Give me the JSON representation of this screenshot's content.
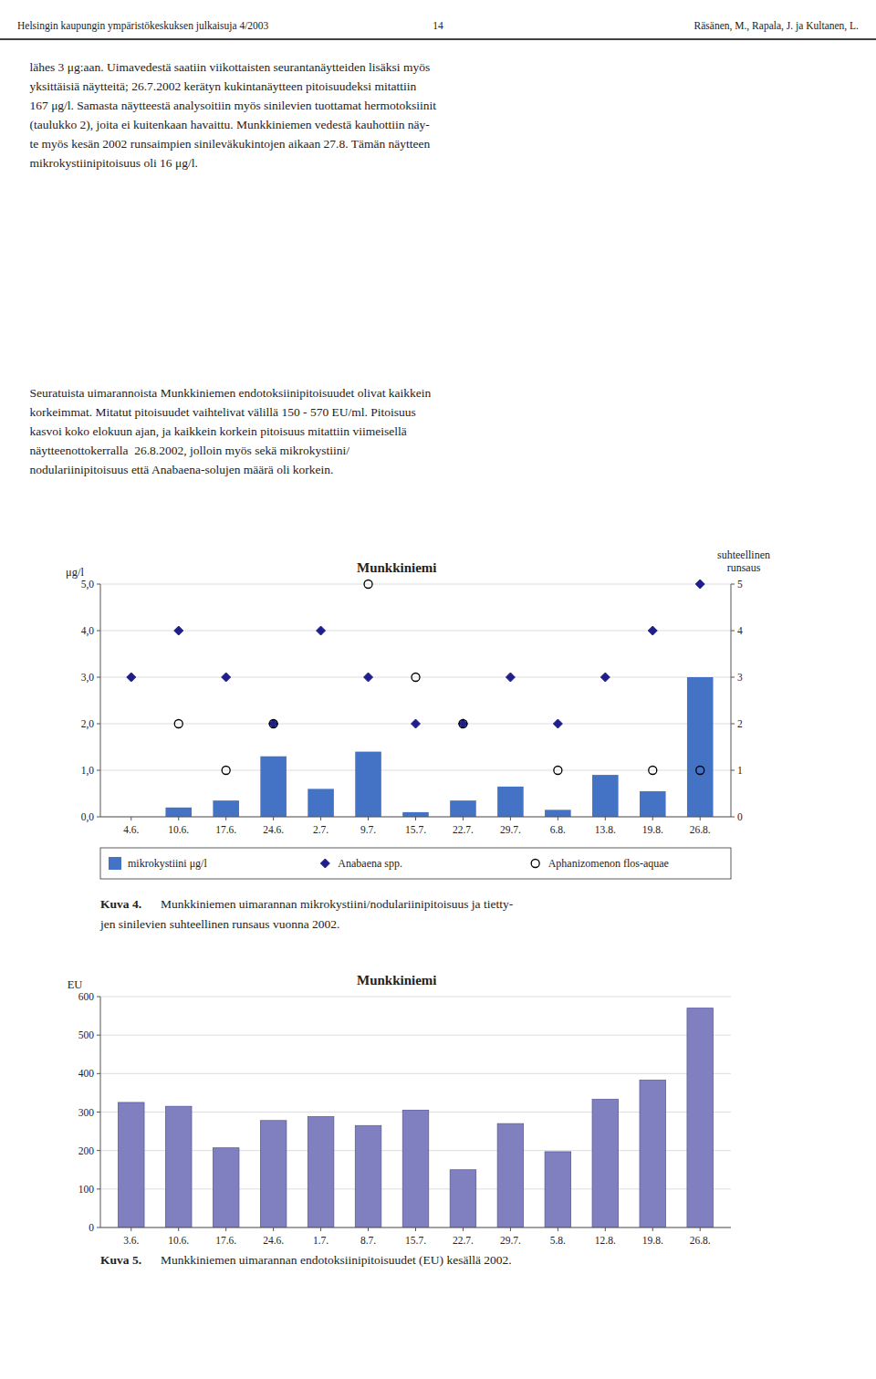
{
  "header": [
    "Helsingin kaupungin ympäristökeskuksen julkaisuja 4/2003",
    "14",
    "Räsänen, M., Rapala, J. ja Kultanen, L."
  ],
  "body_text": [
    "    lähes 3 μg:aan. Uimavedestä saatiin viikottaisten seurantanäytteiden lisäksi myös",
    "    yksittäisiä näytteitä; 26.7.2002 kerätyn kukintanäytteen pitoisuudeksi mitattiin",
    "    167 μg/l. Samasta näytteestä analysoitiin myös sinilevien tuottamat hermotoksiinit",
    "    (taulukko 2), joita ei kuitenkaan havaittu. Munkkiniemen vedestä kauhottiin näy-",
    "    te myös kesän 2002 runsaimpien sinileväkukintojen aikaan 27.8. Tämän näytteen",
    "    mikrokystiinipitoisuus oli 16 μg/l."
  ],
  "body_text2": [
    "    Seuratuista uimarannoista Munkkiniemen endotoksiinipitoisuudet olivat kaikkein",
    "    korkeimmat. Mitatut pitoisuudet vaihtelivat välillä 150 - 570 EU/ml. Pitoisuus",
    "    kasvoi koko elokuun ajan, ja kaikkein korkein pitoisuus mitattiin viimeisellä",
    "    näytteenottokerralla  26.8.2002, jolloin myös sekä mikrokystiini/",
    "    nodulariinipitoisuus että Anabaena-solujen määrä oli korkein."
  ],
  "chart_data": [
    {
      "type": "bar",
      "title": "Munkkiniemi",
      "y_label": "μg/l",
      "y2_label": [
        "suhteellinen",
        "runsaus"
      ],
      "categories": [
        "4.6.",
        "10.6.",
        "17.6.",
        "24.6.",
        "2.7.",
        "9.7.",
        "15.7.",
        "22.7.",
        "29.7.",
        "6.8.",
        "13.8.",
        "19.8.",
        "26.8."
      ],
      "series": [
        {
          "name": "mikrokystiini μg/l",
          "type": "bar",
          "color": "#4472C4",
          "values": [
            0,
            0.2,
            0.35,
            1.3,
            0.6,
            1.4,
            0.1,
            0.35,
            0.65,
            0.15,
            0.9,
            0.55,
            3.0
          ]
        },
        {
          "name": "Anabaena spp.",
          "type": "scatter",
          "marker": "diamond",
          "color": "#1F1F8B",
          "axis": "y2",
          "values": [
            3,
            4,
            3,
            2,
            4,
            3,
            2,
            2,
            3,
            2,
            3,
            4,
            5
          ]
        },
        {
          "name": "Aphanizomenon flos-aquae",
          "type": "scatter",
          "marker": "open_circle",
          "color": "#000000",
          "axis": "y2",
          "values": [
            null,
            2,
            1,
            2,
            null,
            5,
            3,
            2,
            null,
            1,
            null,
            1,
            1
          ]
        }
      ],
      "ylim": [
        0,
        5.0
      ],
      "yticks": [
        {
          "value": 0.0,
          "label": "0,0"
        },
        {
          "value": 1.0,
          "label": "1,0"
        },
        {
          "value": 2.0,
          "label": "2,0"
        },
        {
          "value": 3.0,
          "label": "3,0"
        },
        {
          "value": 4.0,
          "label": "4,0"
        },
        {
          "value": 5.0,
          "label": "5,0"
        }
      ],
      "y2lim": [
        0,
        5
      ],
      "y2ticks": [
        0,
        1,
        2,
        3,
        4,
        5
      ],
      "grid": true,
      "legend": "bottom",
      "caption": [
        "Kuva 4.",
        "Munkkiniemen uimarannan mikrokystiini/nodulariinipitoisuus ja tietty-",
        "jen sinilevien suhteellinen runsaus vuonna 2002."
      ]
    },
    {
      "type": "bar",
      "title": "Munkkiniemi",
      "y_label": "EU",
      "categories": [
        "3.6.",
        "10.6.",
        "17.6.",
        "24.6.",
        "1.7.",
        "8.7.",
        "15.7.",
        "22.7.",
        "29.7.",
        "5.8.",
        "12.8.",
        "19.8.",
        "26.8."
      ],
      "values": [
        325,
        315,
        207,
        278,
        288,
        265,
        305,
        150,
        270,
        197,
        333,
        383,
        570
      ],
      "color": "#8080C0",
      "ylim": [
        0,
        600
      ],
      "yticks": [
        0,
        100,
        200,
        300,
        400,
        500,
        600
      ],
      "grid": true,
      "caption": [
        "Kuva 5.",
        "Munkkiniemen uimarannan endotoksiinipitoisuudet (EU) kesällä 2002."
      ]
    }
  ]
}
